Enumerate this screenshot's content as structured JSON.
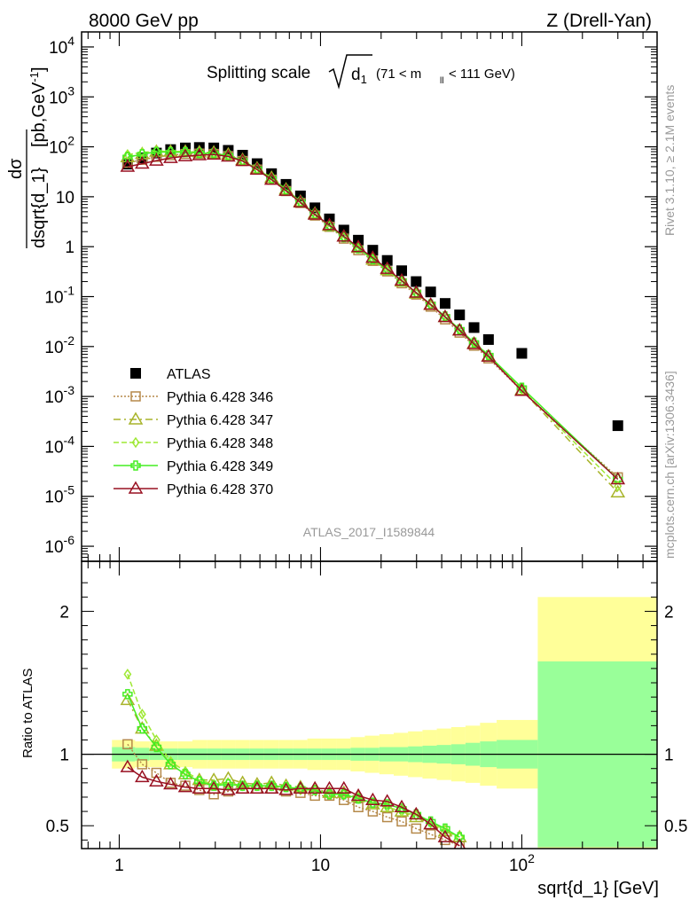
{
  "header": {
    "left": "8000 GeV pp",
    "right": "Z (Drell-Yan)",
    "title_main": "Splitting scale",
    "title_sub": "(71 < m",
    "title_sub2": "< 111 GeV)",
    "side_top": "Rivet 3.1.10, ≥ 2.1M events",
    "side_bottom": "mcplots.cern.ch [arXiv:1306.3436]",
    "analysis": "ATLAS_2017_I1589844"
  },
  "colors": {
    "ATLAS": "#000000",
    "p346": "#b5894a",
    "p347": "#a8b42a",
    "p348": "#9ee833",
    "p349": "#44ee22",
    "p370": "#991122",
    "band_inner": "#99ff99",
    "band_outer": "#ffff99"
  },
  "chart_data": [
    {
      "type": "scatter",
      "panel": "main",
      "xscale": "log",
      "yscale": "log",
      "xlim": [
        0.65,
        470
      ],
      "ylim": [
        5e-07,
        20000
      ],
      "ylabel": "dσ/dsqrt{d_1} [pb,GeV^-1]",
      "xlabel": "sqrt{d_1} [GeV]",
      "y_ticks": [
        "10^4",
        "10^3",
        "10^2",
        "10",
        "1",
        "10^-1",
        "10^-2",
        "10^-3",
        "10^-4",
        "10^-5",
        "10^-6"
      ],
      "x_ticks": [
        "1",
        "10",
        "10^2"
      ],
      "legend_position": "middle-left",
      "x": [
        1.1,
        1.3,
        1.53,
        1.8,
        2.13,
        2.5,
        2.95,
        3.48,
        4.1,
        4.84,
        5.71,
        6.74,
        7.95,
        9.38,
        11.07,
        13.06,
        15.41,
        18.18,
        21.45,
        25.31,
        29.87,
        35.25,
        41.59,
        49.07,
        57.9,
        68.3,
        100,
        300
      ],
      "series": [
        {
          "name": "ATLAS",
          "key": "ATLAS",
          "marker": "square",
          "values": [
            45,
            60,
            75,
            88,
            95,
            97,
            95,
            85,
            68,
            46,
            29,
            17.7,
            10.4,
            6.0,
            3.6,
            2.15,
            1.35,
            0.85,
            0.53,
            0.33,
            0.2,
            0.124,
            0.073,
            0.043,
            0.024,
            0.0138,
            0.0073,
            0.00026
          ]
        },
        {
          "name": "Pythia 6.428 346",
          "key": "p346",
          "marker": "square-open",
          "dash": "2,2",
          "values": [
            48,
            55,
            63,
            68,
            72,
            73,
            72,
            65,
            52,
            35,
            22,
            13,
            7.5,
            4.2,
            2.5,
            1.45,
            0.85,
            0.52,
            0.32,
            0.185,
            0.11,
            0.063,
            0.035,
            0.019,
            0.0104,
            0.0058,
            0.0013,
            2.4e-05
          ]
        },
        {
          "name": "Pythia 6.428 347",
          "key": "p347",
          "marker": "triangle-open",
          "dash": "8,4,2,4",
          "values": [
            62,
            72,
            80,
            80,
            80,
            78,
            77,
            70,
            55,
            37,
            24,
            14,
            8.0,
            4.6,
            2.6,
            1.6,
            0.95,
            0.55,
            0.34,
            0.2,
            0.115,
            0.068,
            0.039,
            0.021,
            0.0115,
            0.0064,
            0.00135,
            1.2e-05
          ]
        },
        {
          "name": "Pythia 6.428 348",
          "key": "p348",
          "marker": "diamond-open",
          "dash": "6,3",
          "values": [
            70,
            77,
            82,
            81,
            80,
            77,
            75,
            68,
            53,
            36,
            23,
            13.8,
            7.8,
            4.5,
            2.6,
            1.55,
            0.92,
            0.55,
            0.34,
            0.2,
            0.118,
            0.069,
            0.04,
            0.022,
            0.012,
            0.0068,
            0.0014,
            1.6e-05
          ]
        },
        {
          "name": "Pythia 6.428 349",
          "key": "p349",
          "marker": "cross-open",
          "dash": "",
          "values": [
            62,
            71,
            79,
            78,
            78,
            75,
            74,
            67,
            53,
            36,
            23,
            13.8,
            7.9,
            4.5,
            2.6,
            1.55,
            0.93,
            0.56,
            0.35,
            0.205,
            0.12,
            0.07,
            0.04,
            0.022,
            0.012,
            0.0067,
            0.0015,
            2.2e-05
          ]
        },
        {
          "name": "Pythia 6.428 370",
          "key": "p370",
          "marker": "triangle-open",
          "dash": "",
          "values": [
            40,
            46,
            53,
            60,
            65,
            68,
            70,
            64,
            52,
            35,
            22,
            13.2,
            7.7,
            4.4,
            2.7,
            1.6,
            0.98,
            0.6,
            0.36,
            0.21,
            0.12,
            0.069,
            0.039,
            0.021,
            0.0112,
            0.0063,
            0.0013,
            2.2e-05
          ]
        }
      ]
    },
    {
      "type": "line",
      "panel": "ratio",
      "xscale": "log",
      "xlim": [
        0.65,
        470
      ],
      "ylim": [
        0.34,
        2.35
      ],
      "ylabel": "Ratio to ATLAS",
      "y_ticks": [
        "0.5",
        "1",
        "2"
      ],
      "x": [
        1.1,
        1.3,
        1.53,
        1.8,
        2.13,
        2.5,
        2.95,
        3.48,
        4.1,
        4.84,
        5.71,
        6.74,
        7.95,
        9.38,
        11.07,
        13.06,
        15.41,
        18.18,
        21.45,
        25.31,
        29.87,
        35.25,
        41.59,
        49.07
      ],
      "band_edges": [
        0.92,
        1.2,
        1.41,
        1.66,
        1.96,
        2.31,
        2.72,
        3.21,
        3.78,
        4.45,
        5.25,
        6.19,
        7.3,
        8.6,
        10.1,
        12.0,
        14.1,
        16.6,
        19.6,
        23.1,
        27.2,
        32.1,
        37.8,
        44.6,
        52.5,
        62.0,
        75.0,
        120,
        470
      ],
      "band_inner_halfwidth": [
        0.05,
        0.045,
        0.04,
        0.04,
        0.04,
        0.04,
        0.04,
        0.04,
        0.04,
        0.04,
        0.04,
        0.04,
        0.04,
        0.04,
        0.04,
        0.04,
        0.045,
        0.045,
        0.05,
        0.05,
        0.055,
        0.06,
        0.065,
        0.07,
        0.08,
        0.09,
        0.1,
        0.65
      ],
      "band_outer_halfwidth": [
        0.1,
        0.09,
        0.09,
        0.09,
        0.09,
        0.1,
        0.1,
        0.1,
        0.1,
        0.1,
        0.1,
        0.1,
        0.1,
        0.11,
        0.11,
        0.11,
        0.12,
        0.13,
        0.14,
        0.15,
        0.16,
        0.17,
        0.18,
        0.19,
        0.2,
        0.22,
        0.24,
        1.1
      ],
      "series": [
        {
          "name": "Pythia 6.428 346",
          "key": "p346",
          "values": [
            1.07,
            0.93,
            0.87,
            0.8,
            0.78,
            0.75,
            0.72,
            0.74,
            0.76,
            0.76,
            0.76,
            0.74,
            0.73,
            0.71,
            0.71,
            0.68,
            0.63,
            0.6,
            0.56,
            0.53,
            0.48,
            0.44,
            0.4,
            0.36
          ]
        },
        {
          "name": "Pythia 6.428 347",
          "key": "p347",
          "values": [
            1.38,
            1.18,
            1.06,
            0.93,
            0.86,
            0.82,
            0.82,
            0.83,
            0.8,
            0.79,
            0.8,
            0.78,
            0.77,
            0.76,
            0.73,
            0.73,
            0.7,
            0.65,
            0.63,
            0.6,
            0.56,
            0.51,
            0.46,
            0.42
          ]
        },
        {
          "name": "Pythia 6.428 348",
          "key": "p348",
          "values": [
            1.56,
            1.28,
            1.1,
            0.95,
            0.88,
            0.82,
            0.79,
            0.8,
            0.78,
            0.78,
            0.78,
            0.77,
            0.75,
            0.75,
            0.72,
            0.72,
            0.69,
            0.65,
            0.63,
            0.6,
            0.57,
            0.52,
            0.47,
            0.42
          ]
        },
        {
          "name": "Pythia 6.428 349",
          "key": "p349",
          "values": [
            1.42,
            1.18,
            1.05,
            0.93,
            0.86,
            0.81,
            0.78,
            0.79,
            0.78,
            0.78,
            0.78,
            0.77,
            0.76,
            0.75,
            0.72,
            0.72,
            0.69,
            0.66,
            0.65,
            0.62,
            0.58,
            0.53,
            0.48,
            0.42
          ]
        },
        {
          "name": "Pythia 6.428 370",
          "key": "p370",
          "values": [
            0.91,
            0.84,
            0.81,
            0.79,
            0.77,
            0.76,
            0.76,
            0.75,
            0.76,
            0.76,
            0.76,
            0.75,
            0.76,
            0.76,
            0.76,
            0.76,
            0.71,
            0.68,
            0.67,
            0.63,
            0.58,
            0.51,
            0.42,
            0.36
          ]
        }
      ]
    }
  ]
}
